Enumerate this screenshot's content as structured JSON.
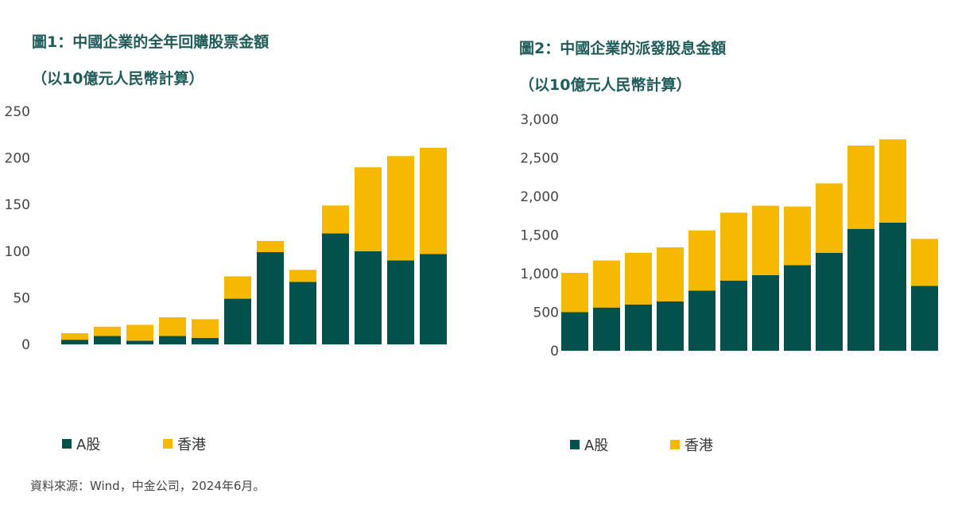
{
  "colors": {
    "a_share": "#03514c",
    "hong_kong": "#f6b800"
  },
  "legend": {
    "a_share": "A股",
    "hong_kong": "香港"
  },
  "source": "資料來源：Wind，中金公司，2024年6月。",
  "chart_data": [
    {
      "type": "bar",
      "stacked": true,
      "title": "圖1：中國企業的全年回購股票金額",
      "subtitle": "（以10億元人民幣計算）",
      "ylim": [
        0,
        250
      ],
      "yticks": [
        0,
        50,
        100,
        150,
        200,
        250
      ],
      "ytick_labels": [
        "0",
        "50",
        "100",
        "150",
        "200",
        "250"
      ],
      "categories": [
        "",
        "",
        "",
        "",
        "",
        "",
        "",
        "",
        "",
        "",
        "",
        ""
      ],
      "series": [
        {
          "name": "A股",
          "values": [
            5,
            9,
            4,
            9,
            7,
            49,
            99,
            67,
            119,
            100,
            90,
            97
          ]
        },
        {
          "name": "香港",
          "values": [
            7,
            10,
            17,
            20,
            20,
            24,
            12,
            13,
            30,
            90,
            112,
            114
          ]
        }
      ],
      "grid": false,
      "legend_position": "bottom-left"
    },
    {
      "type": "bar",
      "stacked": true,
      "title": "圖2：中國企業的派發股息金額",
      "subtitle": "（以10億元人民幣計算）",
      "ylim": [
        0,
        3000
      ],
      "yticks": [
        0,
        500,
        1000,
        1500,
        2000,
        2500,
        3000
      ],
      "ytick_labels": [
        "0",
        "500",
        "1,000",
        "1,500",
        "2,000",
        "2,500",
        "3,000"
      ],
      "categories": [
        "",
        "",
        "",
        "",
        "",
        "",
        "",
        "",
        "",
        "",
        "",
        ""
      ],
      "series": [
        {
          "name": "A股",
          "values": [
            500,
            560,
            600,
            640,
            780,
            910,
            980,
            1110,
            1270,
            1580,
            1660,
            840
          ]
        },
        {
          "name": "香港",
          "values": [
            510,
            610,
            670,
            700,
            780,
            880,
            900,
            760,
            900,
            1080,
            1080,
            610
          ]
        }
      ],
      "grid": false,
      "legend_position": "bottom-left"
    }
  ]
}
